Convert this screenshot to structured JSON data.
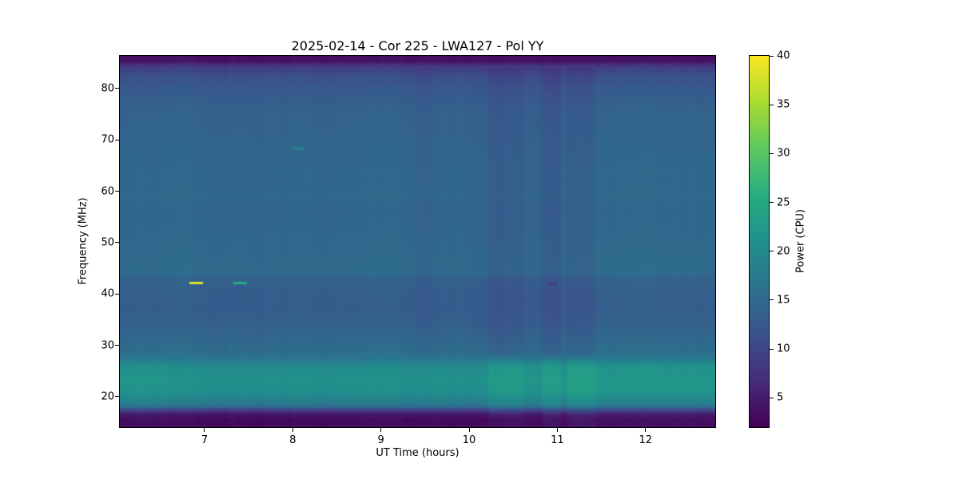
{
  "figure": {
    "title": "2025-02-14 - Cor 225 - LWA127 - Pol YY",
    "xlabel": "UT Time (hours)",
    "ylabel": "Frequency (MHz)",
    "colorbar_label": "Power (CPU)"
  },
  "chart_data": {
    "type": "heatmap",
    "title": "2025-02-14 - Cor 225 - LWA127 - Pol YY",
    "xlabel": "UT Time (hours)",
    "ylabel": "Frequency (MHz)",
    "xlim": [
      6.04,
      12.79
    ],
    "ylim": [
      14.09,
      86.37
    ],
    "xticks": [
      7,
      8,
      9,
      10,
      11,
      12
    ],
    "yticks": [
      20,
      30,
      40,
      50,
      60,
      70,
      80
    ],
    "grid": false,
    "colorbar": {
      "label": "Power (CPU)",
      "vmin": 2,
      "vmax": 40,
      "ticks": [
        5,
        10,
        15,
        20,
        25,
        30,
        35,
        40
      ]
    },
    "colormap": {
      "name": "viridis",
      "stops": [
        [
          0.0,
          "#440154"
        ],
        [
          0.125,
          "#472d7b"
        ],
        [
          0.25,
          "#3b528b"
        ],
        [
          0.375,
          "#2c728e"
        ],
        [
          0.5,
          "#21918c"
        ],
        [
          0.625,
          "#27ad81"
        ],
        [
          0.75,
          "#5ec962"
        ],
        [
          0.875,
          "#aadc32"
        ],
        [
          1.0,
          "#fde725"
        ]
      ]
    },
    "spectrum_profile": {
      "freq_mhz": [
        14.09,
        15.8,
        16.6,
        17.4,
        18.2,
        19.0,
        20.5,
        22.0,
        24.0,
        25.5,
        26.5,
        27.5,
        29.0,
        31.0,
        33.0,
        35.0,
        38.0,
        41.0,
        43.0,
        43.8,
        45.0,
        48.0,
        52.0,
        56.0,
        57.5,
        58.5,
        59.5,
        62.0,
        66.0,
        70.0,
        74.0,
        77.0,
        79.0,
        81.0,
        83.0,
        84.3,
        85.2,
        86.37
      ],
      "power": [
        3.0,
        3.2,
        4.5,
        9.0,
        16.0,
        18.0,
        20.0,
        21.0,
        21.0,
        20.5,
        19.0,
        16.5,
        15.5,
        14.8,
        14.0,
        13.4,
        13.2,
        13.3,
        14.0,
        14.8,
        15.2,
        15.0,
        14.8,
        14.6,
        14.6,
        15.1,
        14.7,
        14.8,
        14.5,
        14.3,
        14.0,
        13.6,
        13.0,
        12.0,
        10.8,
        8.5,
        4.5,
        3.0
      ]
    },
    "time_stripes": [
      {
        "t0": 6.04,
        "t1": 6.55,
        "dp_low": 0.7,
        "dp_mid": 0.0
      },
      {
        "t0": 9.42,
        "t1": 9.62,
        "dp_low": 0.0,
        "dp_mid": -0.6
      },
      {
        "t0": 10.05,
        "t1": 10.22,
        "dp_low": 0.0,
        "dp_mid": -0.4
      },
      {
        "t0": 10.25,
        "t1": 10.58,
        "dp_low": 1.8,
        "dp_mid": -1.3
      },
      {
        "t0": 10.62,
        "t1": 10.82,
        "dp_low": 0.5,
        "dp_mid": -0.6
      },
      {
        "t0": 10.86,
        "t1": 11.02,
        "dp_low": 2.2,
        "dp_mid": -1.6
      },
      {
        "t0": 11.12,
        "t1": 11.4,
        "dp_low": 2.4,
        "dp_mid": -1.2
      },
      {
        "t0": 11.45,
        "t1": 12.79,
        "dp_low": 0.9,
        "dp_mid": 0.1
      }
    ],
    "events": [
      {
        "t0": 6.83,
        "t1": 6.98,
        "f0": 41.9,
        "f1": 42.45,
        "power": 38
      },
      {
        "t0": 7.33,
        "t1": 7.48,
        "f0": 41.9,
        "f1": 42.45,
        "power": 25
      },
      {
        "t0": 8.0,
        "t1": 8.13,
        "f0": 68.0,
        "f1": 68.6,
        "power": 17.5
      },
      {
        "t0": 10.9,
        "t1": 11.0,
        "f0": 41.6,
        "f1": 42.4,
        "power": 10
      }
    ],
    "noise": {
      "row_amp": 0.5,
      "col_amp": 0.45,
      "pixel_amp": 0.2
    }
  }
}
